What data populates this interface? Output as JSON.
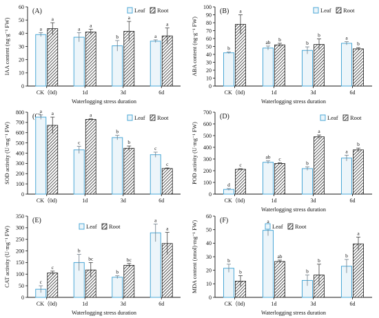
{
  "colors": {
    "leaf_fill": "#ecf5fa",
    "leaf_edge": "#4aa7d6",
    "root_hatch": "#1a1a1a",
    "axis": "#111111"
  },
  "chart_data": [
    {
      "type": "bar",
      "panel": "(A)",
      "ylabel": "IAA content (ng·g⁻¹ FW)",
      "xlabel": "Waterlogging stress duration",
      "categories": [
        "CK（0d)",
        "1d",
        "3d",
        "6d"
      ],
      "ylim": [
        0,
        60
      ],
      "yticks": [
        0,
        10,
        20,
        30,
        40,
        50,
        60
      ],
      "legend": "top-right",
      "series": [
        {
          "name": "Leaf",
          "values": [
            39,
            37,
            30.5,
            34
          ],
          "errors": [
            1.5,
            3.5,
            4,
            1
          ],
          "letters": [
            "a",
            "a",
            "b",
            "a"
          ]
        },
        {
          "name": "Root",
          "values": [
            43.5,
            41,
            41.5,
            38
          ],
          "errors": [
            4.5,
            2,
            7.5,
            6
          ],
          "letters": [
            "a",
            "a",
            "a",
            "a"
          ]
        }
      ]
    },
    {
      "type": "bar",
      "panel": "(B)",
      "ylabel": "ABA content (ng·g⁻¹ FW)",
      "xlabel": "Waterlogging stress duration",
      "categories": [
        "CK（0d)",
        "1d",
        "3d",
        "6d"
      ],
      "ylim": [
        0,
        100
      ],
      "yticks": [
        0,
        10,
        20,
        30,
        40,
        50,
        60,
        70,
        80,
        90,
        100
      ],
      "legend": "top-right",
      "series": [
        {
          "name": "Leaf",
          "values": [
            42,
            48,
            45,
            54
          ],
          "errors": [
            1,
            2.5,
            4.5,
            2
          ],
          "letters": [
            "b",
            "ab",
            "b",
            "a"
          ]
        },
        {
          "name": "Root",
          "values": [
            78,
            52,
            52.5,
            47
          ],
          "errors": [
            12,
            2,
            7,
            1.5
          ],
          "letters": [
            "a",
            "b",
            "b",
            "b"
          ]
        }
      ]
    },
    {
      "type": "bar",
      "panel": "(C)",
      "ylabel": "SOD activity (U·mg⁻¹ FW)",
      "xlabel": "",
      "categories": [
        "CK（0d)",
        "1d",
        "3d",
        "6d"
      ],
      "ylim": [
        0,
        800
      ],
      "yticks": [
        0,
        100,
        200,
        300,
        400,
        500,
        600,
        700,
        800
      ],
      "legend": "top-right",
      "series": [
        {
          "name": "Leaf",
          "values": [
            752,
            432,
            552,
            385
          ],
          "errors": [
            22,
            35,
            22,
            25
          ],
          "letters": [
            "a",
            "c",
            "b",
            "c"
          ]
        },
        {
          "name": "Root",
          "values": [
            672,
            730,
            448,
            250
          ],
          "errors": [
            80,
            5,
            22,
            5
          ],
          "letters": [
            "a",
            "a",
            "b",
            "c"
          ]
        }
      ]
    },
    {
      "type": "bar",
      "panel": "(D)",
      "ylabel": "POD activity (U·mg⁻¹ FW)",
      "xlabel": "Waterlogging stress duration",
      "categories": [
        "CK（0d)",
        "1d",
        "3d",
        "6d"
      ],
      "ylim": [
        0,
        700
      ],
      "yticks": [
        0,
        100,
        200,
        300,
        400,
        500,
        600,
        700
      ],
      "legend": "top-right",
      "series": [
        {
          "name": "Leaf",
          "values": [
            40,
            272,
            218,
            308
          ],
          "errors": [
            8,
            12,
            15,
            25
          ],
          "letters": [
            "d",
            "ab",
            "b",
            "a"
          ]
        },
        {
          "name": "Root",
          "values": [
            212,
            262,
            490,
            378
          ],
          "errors": [
            5,
            5,
            15,
            15
          ],
          "letters": [
            "c",
            "c",
            "a",
            "b"
          ]
        }
      ]
    },
    {
      "type": "bar",
      "panel": "(E)",
      "ylabel": "CAT activity (U·mg⁻¹ FW)",
      "xlabel": "Waterlogging stress duration",
      "categories": [
        "CK（0d)",
        "1d",
        "3d",
        "6d"
      ],
      "ylim": [
        0,
        350
      ],
      "yticks": [
        0,
        50,
        100,
        150,
        200,
        250,
        300,
        350
      ],
      "legend": "top-center",
      "series": [
        {
          "name": "Leaf",
          "values": [
            35,
            150,
            87,
            278
          ],
          "errors": [
            15,
            35,
            6,
            38
          ],
          "letters": [
            "c",
            "b",
            "b",
            "a"
          ]
        },
        {
          "name": "Root",
          "values": [
            105,
            118,
            138,
            232
          ],
          "errors": [
            8,
            32,
            8,
            48
          ],
          "letters": [
            "c",
            "bc",
            "bc",
            "a"
          ]
        }
      ]
    },
    {
      "type": "bar",
      "panel": "(F)",
      "ylabel": "MDA content (nmol)·mg⁻¹ FW)",
      "xlabel": "Waterlogging stress duration",
      "categories": [
        "CK（0d)",
        "1d",
        "3d",
        "6d"
      ],
      "ylim": [
        0,
        60
      ],
      "yticks": [
        0,
        10,
        20,
        30,
        40,
        50,
        60
      ],
      "legend": "top-center",
      "series": [
        {
          "name": "Leaf",
          "values": [
            21.5,
            49.5,
            12.5,
            23
          ],
          "errors": [
            3,
            4,
            4,
            5
          ],
          "letters": [
            "b",
            "a",
            "b",
            "b"
          ]
        },
        {
          "name": "Root",
          "values": [
            12,
            26.5,
            16.5,
            39.5
          ],
          "errors": [
            4,
            1,
            8,
            5
          ],
          "letters": [
            "b",
            "ab",
            "b",
            "a"
          ]
        }
      ]
    }
  ]
}
